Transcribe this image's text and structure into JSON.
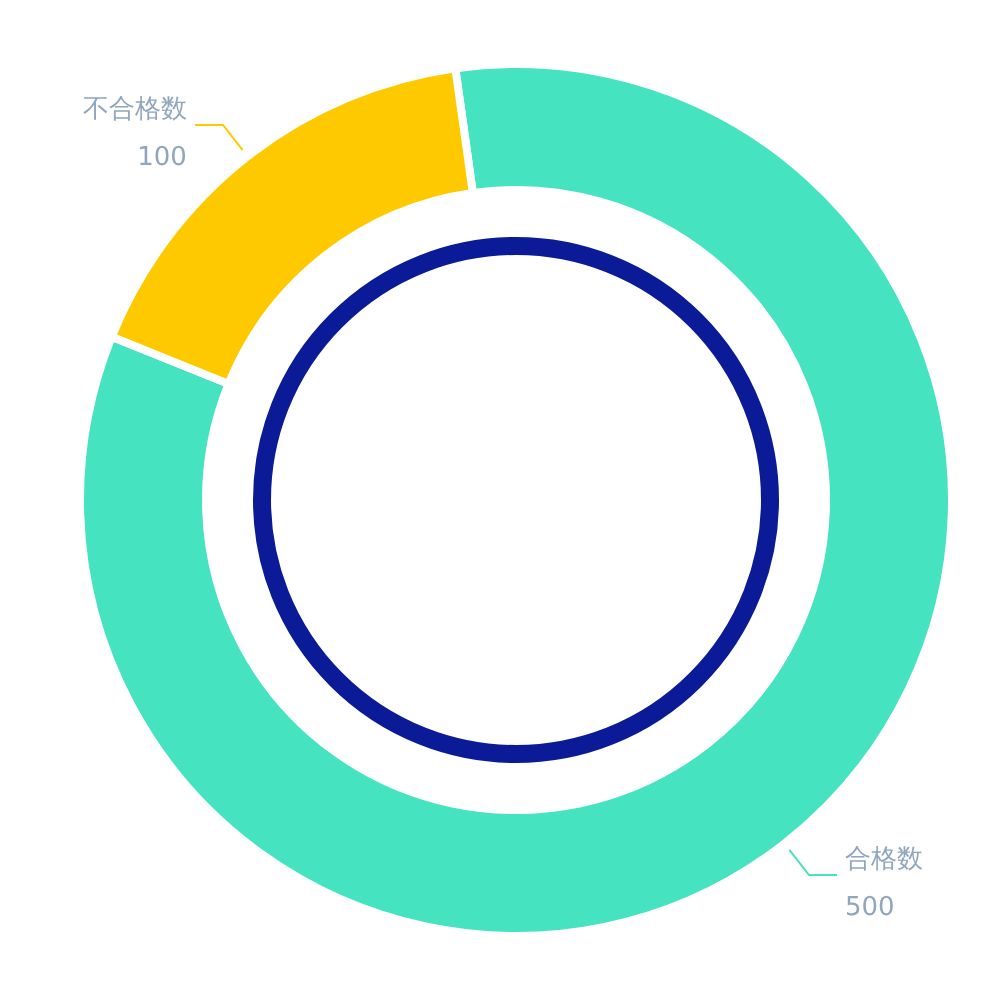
{
  "chart_data": {
    "type": "donut",
    "categories": [
      "合格数",
      "不合格数"
    ],
    "values": [
      500,
      100
    ],
    "colors": [
      "#46e3c0",
      "#ffc900"
    ],
    "data_labels": true
  }
}
